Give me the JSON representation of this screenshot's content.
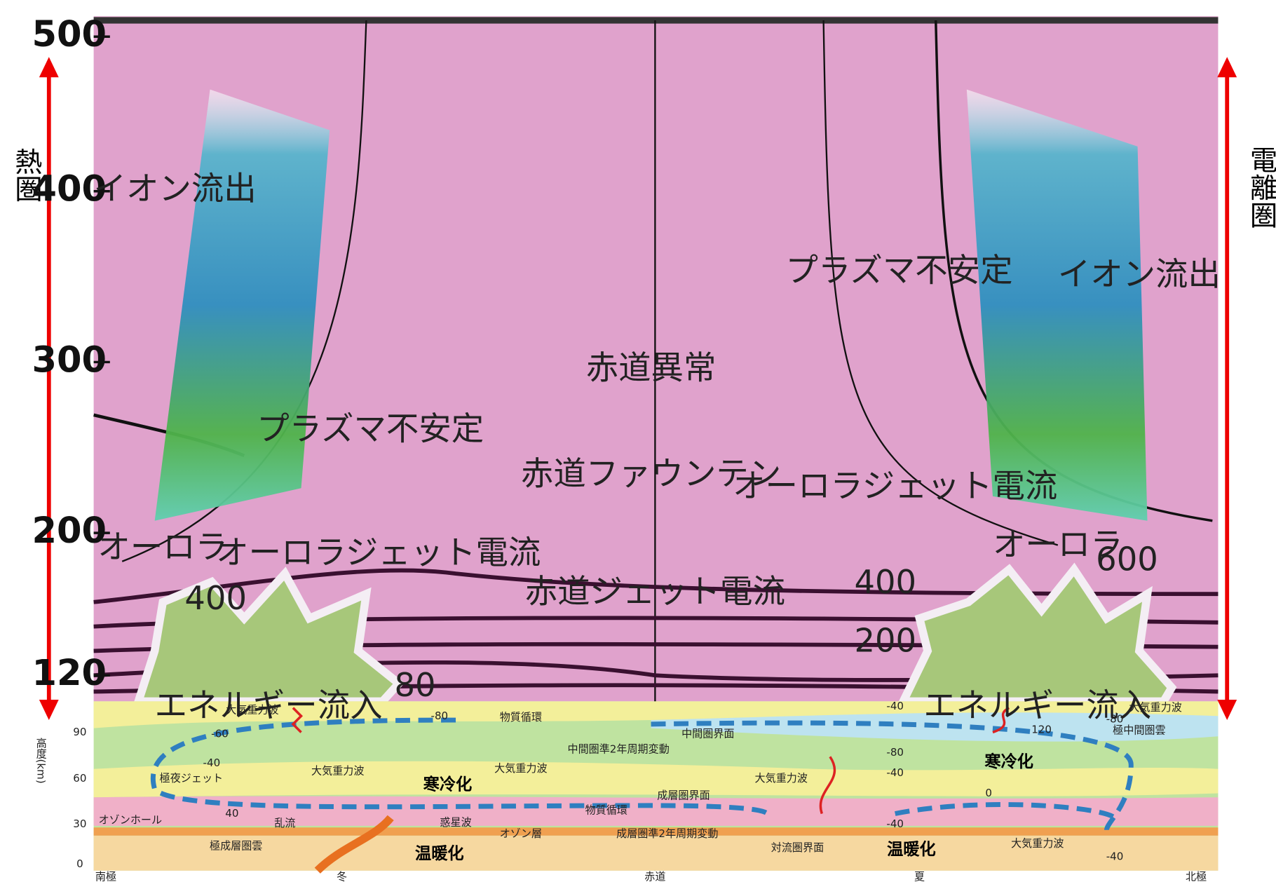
{
  "side_labels": {
    "left": "熱圏",
    "right": "電離圏"
  },
  "upper_panel": {
    "y_ticks": [
      500,
      400,
      300,
      200,
      120
    ],
    "labels": [
      "イオン流出",
      "プラズマ不安定",
      "赤道異常",
      "赤道ファウンテン",
      "オーロラジェット電流",
      "赤道ジェット電流",
      "オーロラ",
      "400",
      "エネルギー流入",
      "80",
      "プラズマ不安定",
      "イオン流出",
      "オーロラジェット電流",
      "オーロラ",
      "600",
      "400",
      "200",
      "エネルギー流入"
    ]
  },
  "lower_panel": {
    "y_axis_title": "高度(km)",
    "y_ticks": [
      90,
      60,
      30,
      0
    ],
    "labels": [
      "大気重力波",
      "-80",
      "物質循環",
      "-60",
      "中間圏界面",
      "中間圏準2年周期変動",
      "-40",
      "大気重力波",
      "大気重力波",
      "極夜ジェット",
      "寒冷化",
      "成層圏界面",
      "物質循環",
      "-40",
      "-80",
      "大気重力波",
      "120",
      "極中間圏雲",
      "-80",
      "-40",
      "大気重力波",
      "寒冷化",
      "0",
      "40",
      "オゾンホール",
      "乱流",
      "惑星波",
      "オゾン層",
      "成層圏準2年周期変動",
      "-40",
      "極成層圏雲",
      "温暖化",
      "対流圏界面",
      "温暖化",
      "大気重力波",
      "-40"
    ],
    "x_labels": [
      "南極",
      "冬",
      "赤道",
      "夏",
      "北極"
    ]
  }
}
